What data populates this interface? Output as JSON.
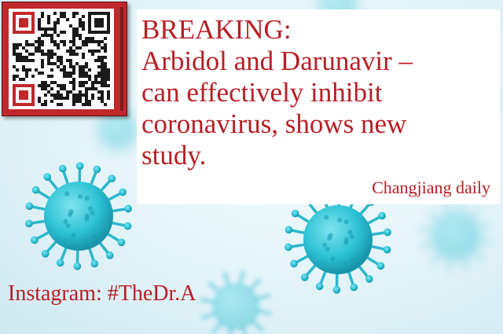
{
  "headline": {
    "line1": "BREAKING:",
    "line2": "Arbidol and Darunavir –",
    "line3": "can effectively inhibit",
    "line4": "coronavirus, shows new",
    "line5": "study."
  },
  "source": "Changjiang daily",
  "instagram": "Instagram: #TheDr.A",
  "colors": {
    "text_red": "#b81e24",
    "frame_red": "#c0282c",
    "virus_cyan": "#2fc3d6",
    "background": "#e2f3f8"
  },
  "icons": [
    "qr-code-icon",
    "virus-illustration"
  ]
}
